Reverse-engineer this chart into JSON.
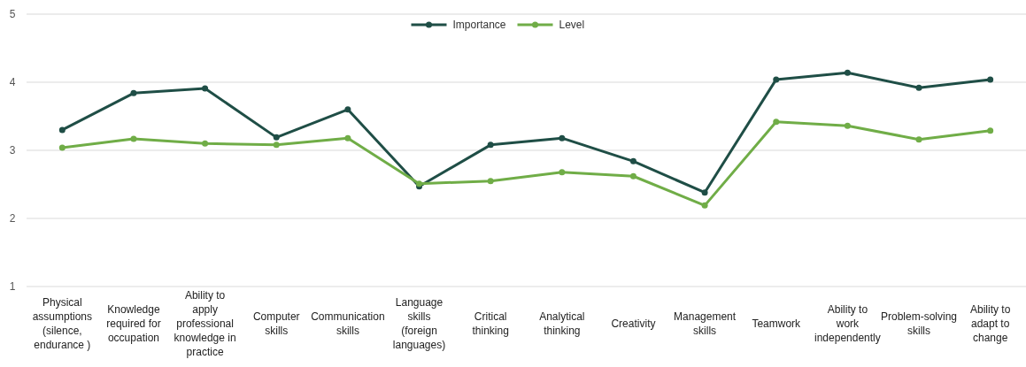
{
  "chart_data": {
    "type": "line",
    "categories": [
      "Physical assumptions (silence, endurance )",
      "Knowledge required for occupation",
      "Ability to apply professional knowledge in practice",
      "Computer skills",
      "Communication skills",
      "Language skills (foreign languages)",
      "Critical thinking",
      "Analytical thinking",
      "Creativity",
      "Management skills",
      "Teamwork",
      "Ability to work independently",
      "Problem-solving skills",
      "Ability to adapt to change"
    ],
    "series": [
      {
        "name": "Importance",
        "color": "#1f4e46",
        "values": [
          3.3,
          3.84,
          3.91,
          3.19,
          3.6,
          2.47,
          3.08,
          3.18,
          2.84,
          2.38,
          4.04,
          4.14,
          3.92,
          4.04
        ]
      },
      {
        "name": "Level",
        "color": "#70ad47",
        "values": [
          3.04,
          3.17,
          3.1,
          3.08,
          3.18,
          2.51,
          2.55,
          2.68,
          2.62,
          2.19,
          3.42,
          3.36,
          3.16,
          3.29
        ]
      }
    ],
    "ylim": [
      1,
      5
    ],
    "yticks": [
      1,
      2,
      3,
      4,
      5
    ],
    "grid": "y",
    "legend": "top",
    "marker": "circle",
    "line_style": "solid"
  }
}
